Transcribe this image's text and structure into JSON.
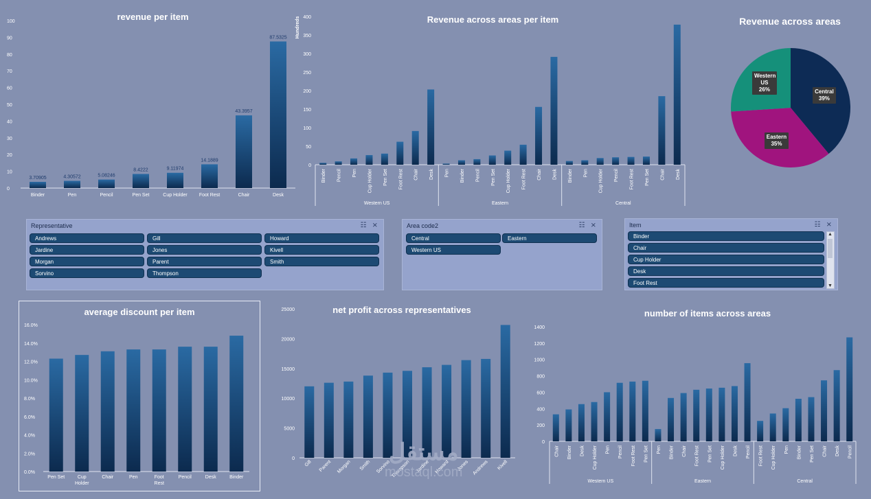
{
  "colors": {
    "background": "#8490b0",
    "bar_top": "#2a6aa3",
    "bar_bottom": "#0c2a4e",
    "slicer_bg": "#95a3cc",
    "button": "#1d4a73"
  },
  "chart_data": [
    {
      "id": "revenue_per_item",
      "type": "bar",
      "title": "revenue per item",
      "categories": [
        "Binder",
        "Pen",
        "Pencil",
        "Pen Set",
        "Cup Holder",
        "Foot Rest",
        "Chair",
        "Desk"
      ],
      "values": [
        3.70905,
        4.30572,
        5.08246,
        8.4222,
        9.11974,
        14.1889,
        43.3957,
        87.5325
      ],
      "data_labels": [
        "3.70905",
        "4.30572",
        "5.08246",
        "8.4222",
        "9.11974",
        "14.1889",
        "43.3957",
        "87.5325"
      ],
      "yticks": [
        "0",
        "10",
        "20",
        "30",
        "40",
        "50",
        "60",
        "70",
        "80",
        "90",
        "100"
      ],
      "ylim": [
        0,
        100
      ]
    },
    {
      "id": "revenue_across_areas_per_item",
      "type": "bar",
      "title": "Revenue across areas per item",
      "ylabel": "Hundreds",
      "yticks": [
        "0",
        "50",
        "100",
        "150",
        "200",
        "250",
        "300",
        "350",
        "400"
      ],
      "ylim": [
        0,
        400
      ],
      "groups": [
        {
          "name": "Western US",
          "categories": [
            "Binder",
            "Pencil",
            "Pen",
            "Cup Holder",
            "Pen Set",
            "Foot Rest",
            "Chair",
            "Desk"
          ],
          "values": [
            5,
            9,
            17,
            26,
            30,
            62,
            91,
            203
          ]
        },
        {
          "name": "Eastern",
          "categories": [
            "Pen",
            "Binder",
            "Pencil",
            "Pen Set",
            "Cup Holder",
            "Foot Rest",
            "Chair",
            "Desk"
          ],
          "values": [
            3,
            12,
            15,
            25,
            38,
            54,
            156,
            291
          ]
        },
        {
          "name": "Central",
          "categories": [
            "Binder",
            "Pen",
            "Cup Holder",
            "Pencil",
            "Foot Rest",
            "Pen Set",
            "Chair",
            "Desk"
          ],
          "values": [
            10,
            12,
            18,
            20,
            21,
            22,
            185,
            378
          ]
        }
      ]
    },
    {
      "id": "revenue_across_areas",
      "type": "pie",
      "title": "Revenue across areas",
      "slices": [
        {
          "name": "Central",
          "value": 39,
          "label": "39%",
          "color": "#0d2b55"
        },
        {
          "name": "Eastern",
          "value": 35,
          "label": "35%",
          "color": "#a0147e"
        },
        {
          "name": "Western US",
          "value": 26,
          "label": "26%",
          "color": "#15907a"
        }
      ]
    },
    {
      "id": "average_discount_per_item",
      "type": "bar",
      "title": "average discount per item",
      "categories": [
        "Pen Set",
        "Cup Holder",
        "Chair",
        "Pen",
        "Foot Rest",
        "Pencil",
        "Desk",
        "Binder"
      ],
      "values": [
        12.3,
        12.7,
        13.1,
        13.3,
        13.3,
        13.6,
        13.6,
        14.8
      ],
      "yticks": [
        "0.0%",
        "2.0%",
        "4.0%",
        "6.0%",
        "8.0%",
        "10.0%",
        "12.0%",
        "14.0%",
        "16.0%"
      ],
      "ylim": [
        0,
        16
      ]
    },
    {
      "id": "net_profit_across_representatives",
      "type": "bar",
      "title": "net profit across representatives",
      "categories": [
        "Gill",
        "Parent",
        "Morgan",
        "Smith",
        "Sorvino",
        "Thompson",
        "Jardine",
        "Howard",
        "Jones",
        "Andrews",
        "Kivell"
      ],
      "values": [
        12000,
        12600,
        12800,
        13800,
        14300,
        14600,
        15200,
        15600,
        16400,
        16600,
        22300
      ],
      "yticks": [
        "0",
        "5000",
        "10000",
        "15000",
        "20000",
        "25000"
      ],
      "ylim": [
        0,
        25000
      ]
    },
    {
      "id": "number_of_items_across_areas",
      "type": "bar",
      "title": "number of items across areas",
      "yticks": [
        "0",
        "200",
        "400",
        "600",
        "800",
        "1000",
        "1200",
        "1400"
      ],
      "ylim": [
        0,
        1400
      ],
      "groups": [
        {
          "name": "Western US",
          "categories": [
            "Chair",
            "Binder",
            "Desk",
            "Cup Holder",
            "Pen",
            "Pencil",
            "Foot Rest",
            "Pen Set"
          ],
          "values": [
            330,
            390,
            455,
            480,
            600,
            715,
            730,
            740
          ]
        },
        {
          "name": "Eastern",
          "categories": [
            "Pen",
            "Binder",
            "Chair",
            "Foot Rest",
            "Pen Set",
            "Cup Holder",
            "Desk",
            "Pencil"
          ],
          "values": [
            150,
            530,
            590,
            630,
            645,
            655,
            675,
            955
          ]
        },
        {
          "name": "Central",
          "categories": [
            "Foot Rest",
            "Cup Holder",
            "Pen",
            "Binder",
            "Pen Set",
            "Chair",
            "Desk",
            "Pencil"
          ],
          "values": [
            250,
            340,
            405,
            520,
            540,
            745,
            870,
            1270
          ]
        }
      ]
    }
  ],
  "slicers": {
    "representative": {
      "title": "Representative",
      "items": [
        "Andrews",
        "Gill",
        "Howard",
        "Jardine",
        "Jones",
        "Kivell",
        "Morgan",
        "Parent",
        "Smith",
        "Sorvino",
        "Thompson"
      ]
    },
    "area": {
      "title": "Area code2",
      "items": [
        "Central",
        "Eastern",
        "Western US"
      ]
    },
    "item": {
      "title": "Item",
      "items": [
        "Binder",
        "Chair",
        "Cup Holder",
        "Desk",
        "Foot Rest"
      ]
    }
  },
  "watermark": {
    "arabic": "مستقل",
    "latin": "mostaql.com"
  }
}
